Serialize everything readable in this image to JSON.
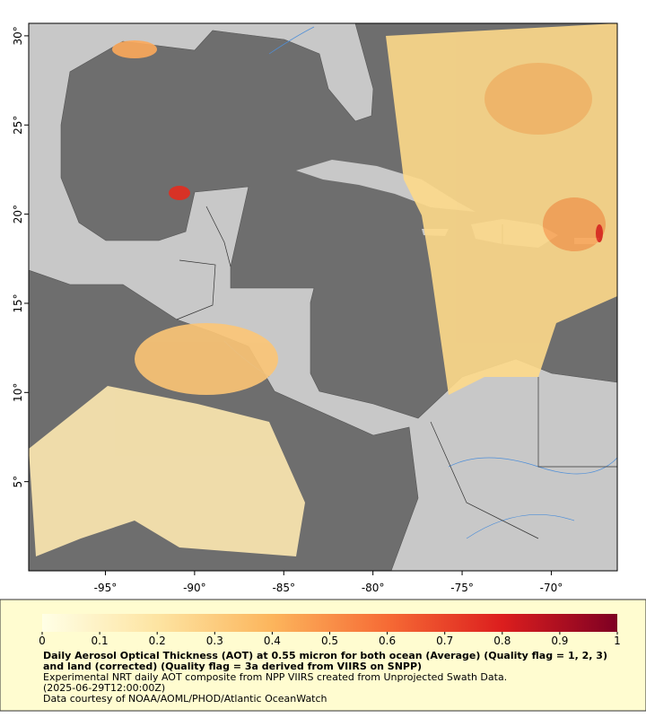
{
  "map": {
    "xlim": [
      -99.3,
      -66.3
    ],
    "ylim": [
      0,
      30.7
    ],
    "lon_ticks": [
      {
        "value": -95,
        "label": "-95°"
      },
      {
        "value": -90,
        "label": "-90°"
      },
      {
        "value": -85,
        "label": "-85°"
      },
      {
        "value": -80,
        "label": "-80°"
      },
      {
        "value": -75,
        "label": "-75°"
      },
      {
        "value": -70,
        "label": "-70°"
      }
    ],
    "lat_ticks": [
      {
        "value": 5,
        "label": "5°"
      },
      {
        "value": 10,
        "label": "10°"
      },
      {
        "value": 15,
        "label": "15°"
      },
      {
        "value": 20,
        "label": "20°"
      },
      {
        "value": 25,
        "label": "25°"
      },
      {
        "value": 30,
        "label": "30°"
      }
    ]
  },
  "colorbar": {
    "lim": [
      0,
      1
    ],
    "ticks": [
      0,
      0.1,
      0.2,
      0.3,
      0.4,
      0.5,
      0.6,
      0.7,
      0.8,
      0.9,
      1
    ]
  },
  "caption": {
    "title": "Daily Aerosol Optical Thickness (AOT) at 0.55 micron for both ocean (Average) (Quality flag = 1, 2, 3) and land (corrected) (Quality flag = 3a derived from VIIRS on SNPP)",
    "lines": [
      "Experimental NRT daily AOT composite from NPP VIIRS created from Unprojected Swath Data.",
      "(2025-06-29T12:00:00Z)",
      "Data courtesy of NOAA/AOML/PHOD/Atlantic OceanWatch"
    ]
  }
}
